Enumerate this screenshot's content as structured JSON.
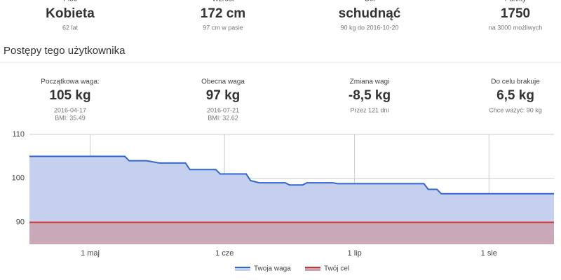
{
  "header": {
    "stats": [
      {
        "label": "Płeć",
        "value": "Kobieta",
        "note": "62 lat"
      },
      {
        "label": "Wzrost",
        "value": "172 cm",
        "note": "97 cm w pasie"
      },
      {
        "label": "Cel",
        "value": "schudnąć",
        "note": "90 kg do 2016-10-20"
      },
      {
        "label": "Punkty",
        "value": "1750",
        "note": "na 3000 możliwych"
      }
    ]
  },
  "section_title": "Postępy tego użytkownika",
  "cards": [
    {
      "label": "Początkowa waga:",
      "value": "105 kg",
      "notes": [
        "2016-04-17",
        "BMI: 35.49"
      ]
    },
    {
      "label": "Obecna waga",
      "value": "97 kg",
      "notes": [
        "2016-07-21",
        "BMI: 32.62"
      ]
    },
    {
      "label": "Zmiana wagi",
      "value": "-8,5 kg",
      "notes": [
        "Przez 121 dni"
      ]
    },
    {
      "label": "Do celu brakuje",
      "value": "6,5 kg",
      "notes": [
        "Chce ważyć: 90 kg"
      ]
    }
  ],
  "chart_data": {
    "type": "area",
    "x": [
      "2016-04-17",
      "2016-05-09",
      "2016-05-10",
      "2016-05-14",
      "2016-05-17",
      "2016-05-23",
      "2016-05-24",
      "2016-05-30",
      "2016-05-31",
      "2016-06-06",
      "2016-06-07",
      "2016-06-09",
      "2016-06-15",
      "2016-06-16",
      "2016-06-19",
      "2016-06-20",
      "2016-06-26",
      "2016-06-27",
      "2016-07-17",
      "2016-07-18",
      "2016-07-20",
      "2016-07-21",
      "2016-08-16"
    ],
    "series": [
      {
        "name": "Twoja waga",
        "color": "#3366cc",
        "fill": "#c5d0ef",
        "values": [
          105,
          105,
          104,
          104,
          103.5,
          103.5,
          102,
          102,
          101,
          101,
          99.5,
          99,
          99,
          98.5,
          98.5,
          99,
          99,
          98.8,
          98.8,
          97.5,
          97.5,
          96.5,
          96.5
        ]
      },
      {
        "name": "Twój cel",
        "color": "#cc3333",
        "fill": "#c9a1ae",
        "values": [
          90,
          90,
          90,
          90,
          90,
          90,
          90,
          90,
          90,
          90,
          90,
          90,
          90,
          90,
          90,
          90,
          90,
          90,
          90,
          90,
          90,
          90,
          90
        ]
      }
    ],
    "xlim": [
      "2016-04-17",
      "2016-08-16"
    ],
    "xticks": [
      {
        "value": "2016-05-01",
        "label": "1 maj"
      },
      {
        "value": "2016-06-01",
        "label": "1 cze"
      },
      {
        "value": "2016-07-01",
        "label": "1 lip"
      },
      {
        "value": "2016-08-01",
        "label": "1 sie"
      }
    ],
    "ylim": [
      85,
      110
    ],
    "yticks": [
      90,
      100,
      110
    ],
    "grid": true,
    "legend": "bottom"
  }
}
